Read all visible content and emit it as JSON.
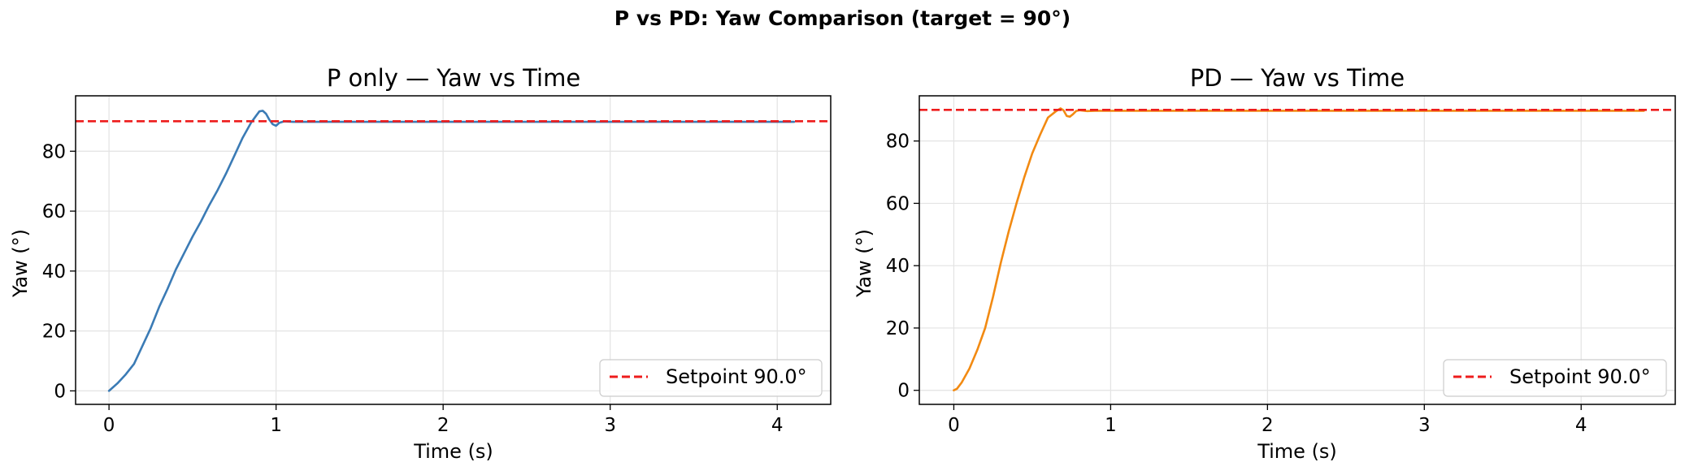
{
  "suptitle": "P vs PD: Yaw Comparison (target = 90°)",
  "chart_data": [
    {
      "type": "line",
      "title": "P only — Yaw vs Time",
      "xlabel": "Time (s)",
      "ylabel": "Yaw (°)",
      "xlim": [
        -0.2,
        4.32
      ],
      "ylim": [
        -4.5,
        98.5
      ],
      "xticks": [
        0,
        1,
        2,
        3,
        4
      ],
      "yticks": [
        0,
        20,
        40,
        60,
        80
      ],
      "grid": true,
      "legend_position": "bottom-right",
      "series": [
        {
          "name": "",
          "color": "#3b7bb5",
          "x": [
            0,
            0.05,
            0.1,
            0.15,
            0.2,
            0.25,
            0.3,
            0.35,
            0.4,
            0.45,
            0.5,
            0.55,
            0.6,
            0.65,
            0.7,
            0.75,
            0.8,
            0.85,
            0.88,
            0.9,
            0.92,
            0.94,
            0.96,
            0.98,
            1.0,
            1.02,
            1.05,
            1.1,
            1.2,
            1.5,
            2.0,
            2.5,
            3.0,
            3.5,
            4.0,
            4.1
          ],
          "y": [
            0,
            2.5,
            5.5,
            9,
            15,
            21,
            28,
            34,
            40.5,
            46,
            51.5,
            56.5,
            62,
            67,
            72.5,
            78.5,
            84.5,
            89.5,
            91.8,
            93.3,
            93.5,
            92.5,
            90.5,
            89,
            88.5,
            89.5,
            90,
            89.8,
            89.8,
            89.8,
            89.8,
            89.8,
            89.8,
            89.8,
            89.8,
            89.8
          ]
        },
        {
          "name": "Setpoint 90.0°",
          "color": "#ee1c1c",
          "style": "dashed",
          "y_constant": 90.0
        }
      ]
    },
    {
      "type": "line",
      "title": "PD — Yaw vs Time",
      "xlabel": "Time (s)",
      "ylabel": "Yaw (°)",
      "xlim": [
        -0.22,
        4.6
      ],
      "ylim": [
        -4.5,
        94.5
      ],
      "xticks": [
        0,
        1,
        2,
        3,
        4
      ],
      "yticks": [
        0,
        20,
        40,
        60,
        80
      ],
      "grid": true,
      "legend_position": "bottom-right",
      "series": [
        {
          "name": "",
          "color": "#f28a12",
          "x": [
            0,
            0.02,
            0.05,
            0.1,
            0.15,
            0.2,
            0.25,
            0.3,
            0.35,
            0.4,
            0.45,
            0.5,
            0.55,
            0.6,
            0.65,
            0.68,
            0.7,
            0.72,
            0.74,
            0.76,
            0.78,
            0.8,
            0.85,
            0.9,
            1.0,
            1.5,
            2.0,
            2.5,
            3.0,
            3.5,
            4.0,
            4.4
          ],
          "y": [
            0,
            0.5,
            2.5,
            7,
            13,
            20,
            30,
            41,
            51,
            60,
            68.5,
            76,
            82,
            87.5,
            89.5,
            90.5,
            89.8,
            88,
            87.8,
            88.6,
            89.6,
            89.9,
            89.6,
            89.7,
            89.7,
            89.7,
            89.7,
            89.7,
            89.7,
            89.7,
            89.7,
            89.7
          ]
        },
        {
          "name": "Setpoint 90.0°",
          "color": "#ee1c1c",
          "style": "dashed",
          "y_constant": 90.0
        }
      ]
    }
  ]
}
